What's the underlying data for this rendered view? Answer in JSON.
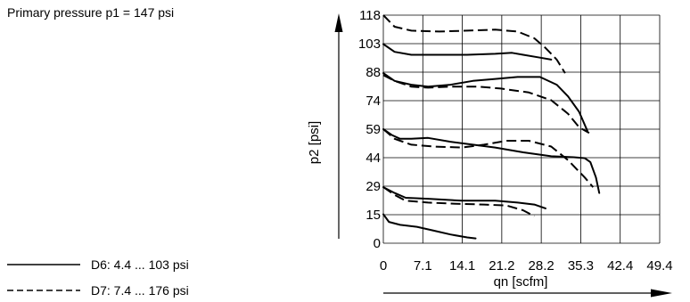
{
  "chart_data": {
    "type": "line",
    "note": "Primary pressure p1 = 147 psi",
    "xlabel": "qn [scfm]",
    "ylabel": "p2 [psi]",
    "xlim": [
      0,
      49.4
    ],
    "ylim": [
      0,
      118
    ],
    "x_ticks": [
      "0",
      "7.1",
      "14.1",
      "21.2",
      "28.2",
      "35.3",
      "42.4",
      "49.4"
    ],
    "y_ticks": [
      "0",
      "15",
      "29",
      "44",
      "59",
      "74",
      "88",
      "103",
      "118"
    ],
    "grid": true,
    "legend_position": "bottom-left",
    "series": [
      {
        "name": "D6: 4.4 ... 103 psi",
        "style": "solid",
        "curves": [
          [
            [
              0,
              15
            ],
            [
              1,
              11
            ],
            [
              3,
              9.5
            ],
            [
              6,
              8.5
            ],
            [
              9,
              6.5
            ],
            [
              12,
              4.5
            ],
            [
              15,
              3
            ],
            [
              16.5,
              2.5
            ]
          ],
          [
            [
              0,
              29
            ],
            [
              2,
              26
            ],
            [
              4,
              23.5
            ],
            [
              8,
              23
            ],
            [
              14,
              22
            ],
            [
              20,
              22
            ],
            [
              24,
              21
            ],
            [
              27,
              20
            ],
            [
              29,
              18
            ]
          ],
          [
            [
              0,
              59
            ],
            [
              1.5,
              56
            ],
            [
              3,
              54
            ],
            [
              5,
              54
            ],
            [
              8,
              54.5
            ],
            [
              12,
              52.5
            ],
            [
              16,
              51
            ],
            [
              20,
              49.5
            ],
            [
              25,
              47
            ],
            [
              30,
              45
            ],
            [
              34,
              44.5
            ],
            [
              36,
              44
            ],
            [
              37,
              42
            ],
            [
              38,
              34
            ],
            [
              38.6,
              26
            ]
          ],
          [
            [
              0,
              88
            ],
            [
              2,
              84
            ],
            [
              5,
              82
            ],
            [
              8,
              81
            ],
            [
              12,
              82
            ],
            [
              16,
              84
            ],
            [
              20,
              85
            ],
            [
              24,
              86
            ],
            [
              28,
              86
            ],
            [
              31,
              82
            ],
            [
              33,
              76
            ],
            [
              35,
              68
            ],
            [
              36.5,
              58
            ]
          ],
          [
            [
              0,
              103
            ],
            [
              2,
              99
            ],
            [
              5,
              97.5
            ],
            [
              10,
              97.5
            ],
            [
              15,
              97.5
            ],
            [
              20,
              98
            ],
            [
              23,
              98.5
            ],
            [
              25,
              97.5
            ],
            [
              28,
              96
            ],
            [
              30,
              95
            ]
          ]
        ]
      },
      {
        "name": "D7: 7.4 ... 176 psi",
        "style": "dashed",
        "curves": [
          [
            [
              0,
              29
            ],
            [
              2,
              25
            ],
            [
              4,
              22
            ],
            [
              8,
              21
            ],
            [
              12,
              20.5
            ],
            [
              18,
              20
            ],
            [
              22,
              19.5
            ],
            [
              25,
              17
            ],
            [
              27,
              14
            ]
          ],
          [
            [
              0,
              59
            ],
            [
              2,
              54
            ],
            [
              5,
              51
            ],
            [
              9,
              50
            ],
            [
              14,
              49.5
            ],
            [
              18,
              51
            ],
            [
              22,
              53
            ],
            [
              26,
              53
            ],
            [
              30,
              50
            ],
            [
              33,
              43
            ],
            [
              36,
              34
            ],
            [
              37.5,
              29
            ]
          ],
          [
            [
              0,
              87
            ],
            [
              2,
              84
            ],
            [
              5,
              81
            ],
            [
              8,
              80.5
            ],
            [
              12,
              81
            ],
            [
              17,
              81
            ],
            [
              21,
              80
            ],
            [
              26,
              78
            ],
            [
              30,
              74
            ],
            [
              33,
              67
            ],
            [
              35,
              60
            ],
            [
              36.8,
              57
            ]
          ],
          [
            [
              0,
              118
            ],
            [
              2,
              112
            ],
            [
              5,
              110
            ],
            [
              10,
              109.5
            ],
            [
              15,
              110
            ],
            [
              20,
              110.5
            ],
            [
              24,
              109.5
            ],
            [
              27,
              106
            ],
            [
              29,
              101
            ],
            [
              31,
              95
            ],
            [
              32.5,
              88
            ]
          ]
        ]
      }
    ]
  }
}
